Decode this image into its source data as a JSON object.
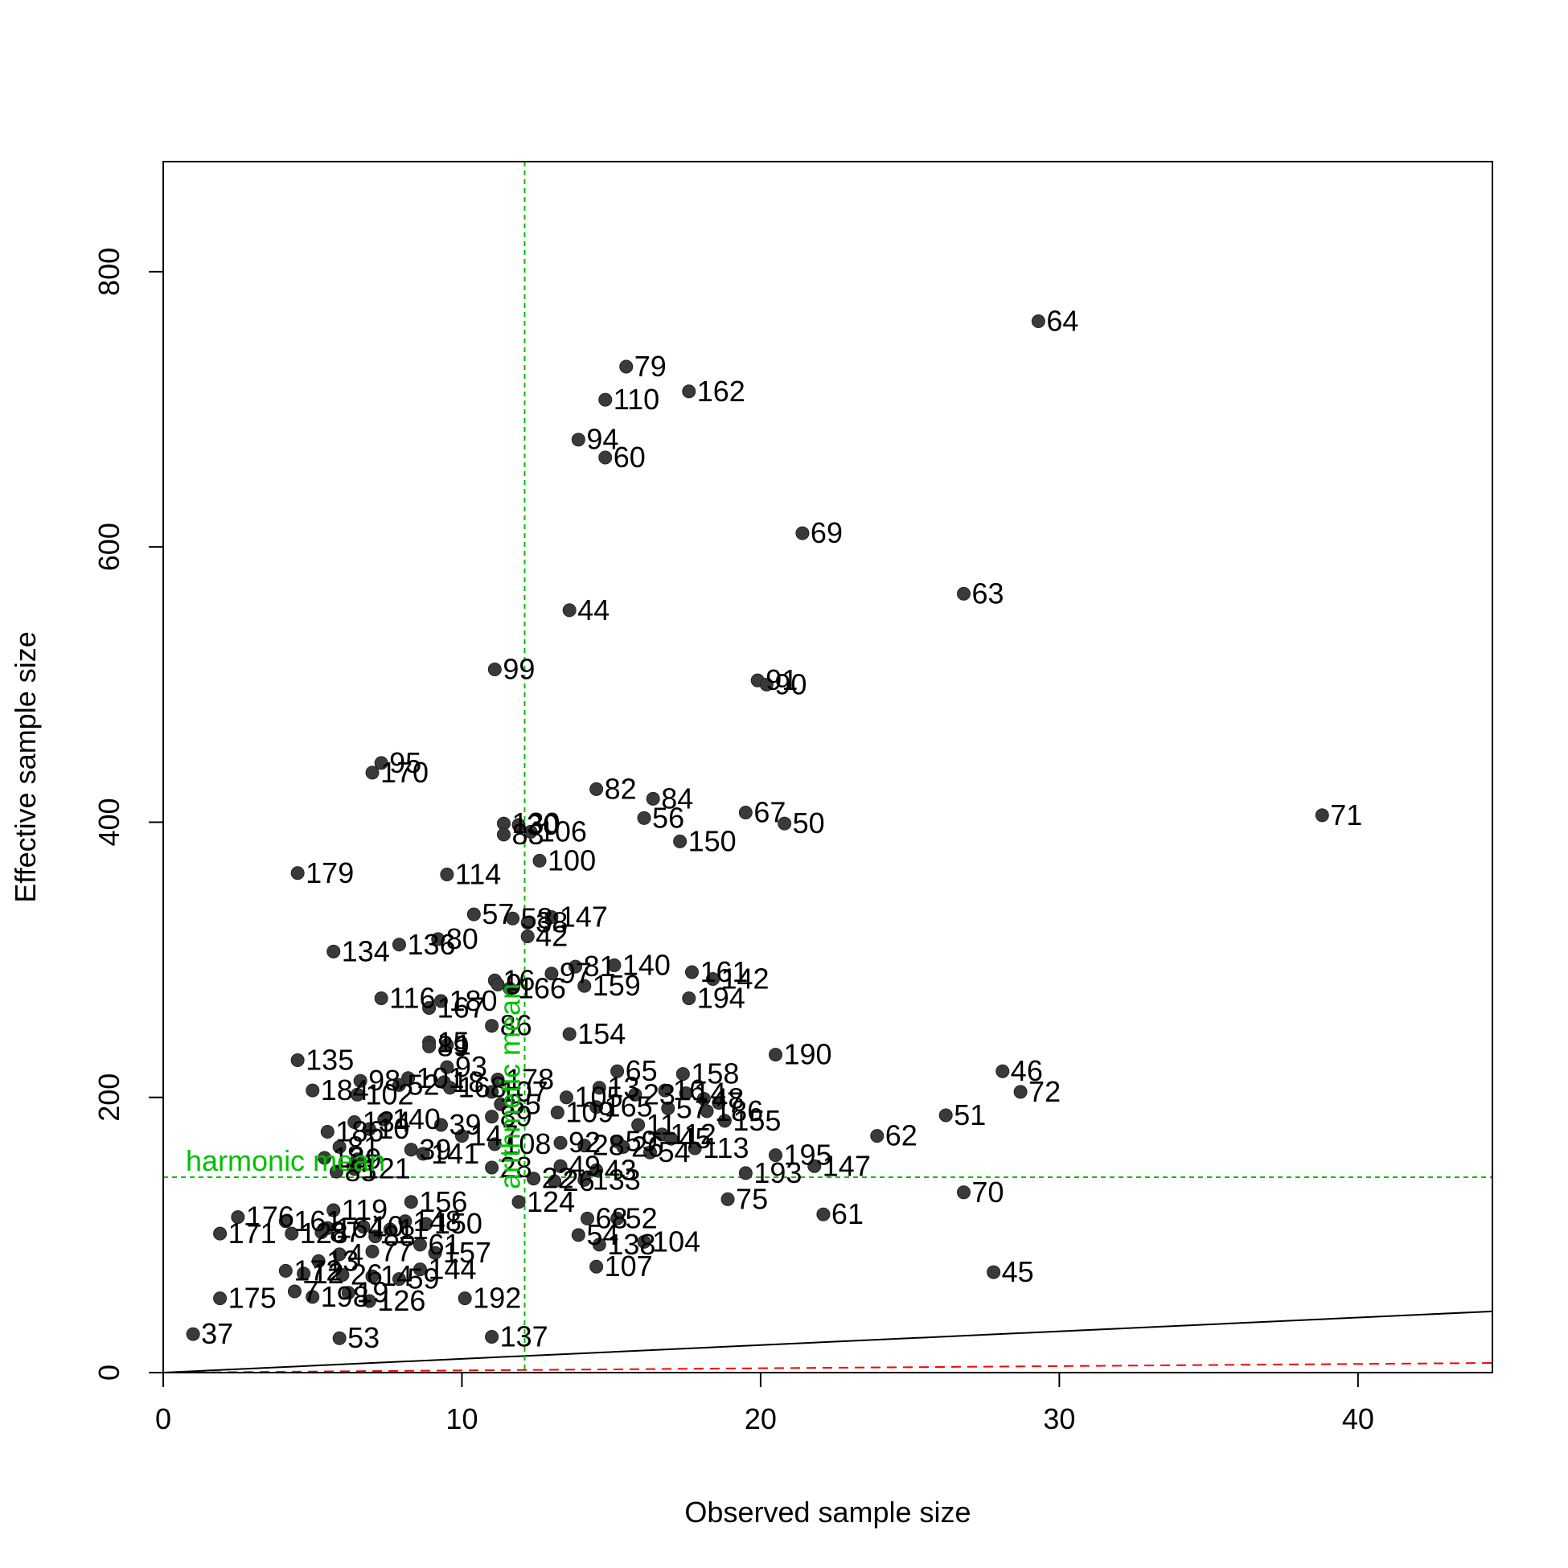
{
  "chart_data": {
    "type": "scatter",
    "title": "",
    "xlabel": "Observed sample size",
    "ylabel": "Effective sample size",
    "xlim": [
      0,
      44.5
    ],
    "ylim": [
      0,
      880
    ],
    "xticks": [
      0,
      10,
      20,
      30,
      40
    ],
    "yticks": [
      0,
      200,
      400,
      600,
      800
    ],
    "grid": false,
    "point_color": "#3a3a3a",
    "reference_lines": {
      "harmonic_mean": {
        "label": "harmonic mean",
        "y": 142,
        "color": "#00c000"
      },
      "arithmetic_mean": {
        "label": "arithmetic mean",
        "x": 12.1,
        "color": "#00c000"
      },
      "black_line": {
        "x": [
          0,
          44.5
        ],
        "y": [
          0,
          44.5
        ],
        "color": "#000000"
      },
      "red_dashed_line": {
        "x": [
          0,
          44.5
        ],
        "y": [
          0,
          7
        ],
        "color": "#ff0000"
      }
    },
    "points": [
      {
        "label": "64",
        "x": 29.3,
        "y": 764
      },
      {
        "label": "79",
        "x": 15.5,
        "y": 731
      },
      {
        "label": "162",
        "x": 17.6,
        "y": 713
      },
      {
        "label": "110",
        "x": 14.8,
        "y": 707
      },
      {
        "label": "94",
        "x": 13.9,
        "y": 678
      },
      {
        "label": "60",
        "x": 14.8,
        "y": 665
      },
      {
        "label": "69",
        "x": 21.4,
        "y": 610
      },
      {
        "label": "63",
        "x": 26.8,
        "y": 566
      },
      {
        "label": "44",
        "x": 13.6,
        "y": 554
      },
      {
        "label": "99",
        "x": 11.1,
        "y": 511
      },
      {
        "label": "91",
        "x": 19.9,
        "y": 503
      },
      {
        "label": "90",
        "x": 20.2,
        "y": 500
      },
      {
        "label": "95",
        "x": 7.3,
        "y": 443
      },
      {
        "label": "170",
        "x": 7.0,
        "y": 436
      },
      {
        "label": "82",
        "x": 14.5,
        "y": 424
      },
      {
        "label": "84",
        "x": 16.4,
        "y": 417
      },
      {
        "label": "71",
        "x": 38.8,
        "y": 405
      },
      {
        "label": "67",
        "x": 19.5,
        "y": 407
      },
      {
        "label": "56",
        "x": 16.1,
        "y": 403
      },
      {
        "label": "50",
        "x": 20.8,
        "y": 399
      },
      {
        "label": "130",
        "x": 11.4,
        "y": 399
      },
      {
        "label": "30",
        "x": 11.9,
        "y": 398
      },
      {
        "label": "83",
        "x": 11.4,
        "y": 391
      },
      {
        "label": "106",
        "x": 12.3,
        "y": 393
      },
      {
        "label": "150",
        "x": 17.3,
        "y": 386
      },
      {
        "label": "100",
        "x": 12.6,
        "y": 372
      },
      {
        "label": "179",
        "x": 4.5,
        "y": 363
      },
      {
        "label": "114",
        "x": 9.5,
        "y": 362
      },
      {
        "label": "57",
        "x": 10.4,
        "y": 333
      },
      {
        "label": "58",
        "x": 11.7,
        "y": 330
      },
      {
        "label": "38",
        "x": 12.2,
        "y": 327
      },
      {
        "label": "147",
        "x": 13.0,
        "y": 331
      },
      {
        "label": "42",
        "x": 12.2,
        "y": 317
      },
      {
        "label": "80",
        "x": 9.2,
        "y": 315
      },
      {
        "label": "136",
        "x": 7.9,
        "y": 311
      },
      {
        "label": "134",
        "x": 5.7,
        "y": 306
      },
      {
        "label": "81",
        "x": 13.8,
        "y": 295
      },
      {
        "label": "140",
        "x": 15.1,
        "y": 296
      },
      {
        "label": "97",
        "x": 13.0,
        "y": 290
      },
      {
        "label": "161",
        "x": 17.7,
        "y": 291
      },
      {
        "label": "142",
        "x": 18.4,
        "y": 286
      },
      {
        "label": "16",
        "x": 11.1,
        "y": 285
      },
      {
        "label": "9",
        "x": 11.2,
        "y": 282
      },
      {
        "label": "159",
        "x": 14.1,
        "y": 281
      },
      {
        "label": "166",
        "x": 11.6,
        "y": 279
      },
      {
        "label": "194",
        "x": 17.6,
        "y": 272
      },
      {
        "label": "116",
        "x": 7.3,
        "y": 272
      },
      {
        "label": "180",
        "x": 9.3,
        "y": 270
      },
      {
        "label": "167",
        "x": 8.9,
        "y": 265
      },
      {
        "label": "86",
        "x": 11.0,
        "y": 252
      },
      {
        "label": "154",
        "x": 13.6,
        "y": 246
      },
      {
        "label": "15",
        "x": 8.9,
        "y": 240
      },
      {
        "label": "89",
        "x": 8.9,
        "y": 237
      },
      {
        "label": "1",
        "x": 9.5,
        "y": 238
      },
      {
        "label": "190",
        "x": 20.5,
        "y": 231
      },
      {
        "label": "135",
        "x": 4.5,
        "y": 227
      },
      {
        "label": "93",
        "x": 9.5,
        "y": 222
      },
      {
        "label": "65",
        "x": 15.2,
        "y": 219
      },
      {
        "label": "46",
        "x": 28.1,
        "y": 219
      },
      {
        "label": "158",
        "x": 17.4,
        "y": 217
      },
      {
        "label": "178",
        "x": 11.2,
        "y": 213
      },
      {
        "label": "98",
        "x": 6.6,
        "y": 212
      },
      {
        "label": "101",
        "x": 8.2,
        "y": 214
      },
      {
        "label": "18",
        "x": 9.4,
        "y": 211
      },
      {
        "label": "13",
        "x": 14.6,
        "y": 207
      },
      {
        "label": "184",
        "x": 5.0,
        "y": 205
      },
      {
        "label": "102",
        "x": 6.5,
        "y": 202
      },
      {
        "label": "72",
        "x": 28.7,
        "y": 204
      },
      {
        "label": "16",
        "x": 16.8,
        "y": 205
      },
      {
        "label": "52",
        "x": 7.9,
        "y": 209
      },
      {
        "label": "168",
        "x": 9.6,
        "y": 207
      },
      {
        "label": "107",
        "x": 11.0,
        "y": 204
      },
      {
        "label": "23",
        "x": 15.8,
        "y": 202
      },
      {
        "label": "14",
        "x": 17.5,
        "y": 203
      },
      {
        "label": "48",
        "x": 18.1,
        "y": 199
      },
      {
        "label": "105",
        "x": 13.5,
        "y": 200
      },
      {
        "label": "7",
        "x": 18.6,
        "y": 196
      },
      {
        "label": "55",
        "x": 11.3,
        "y": 195
      },
      {
        "label": "165",
        "x": 14.5,
        "y": 193
      },
      {
        "label": "57",
        "x": 16.9,
        "y": 192
      },
      {
        "label": "186",
        "x": 18.2,
        "y": 190
      },
      {
        "label": "51",
        "x": 26.2,
        "y": 187
      },
      {
        "label": "89",
        "x": 11.0,
        "y": 186
      },
      {
        "label": "109",
        "x": 13.2,
        "y": 189
      },
      {
        "label": "155",
        "x": 18.8,
        "y": 183
      },
      {
        "label": "134",
        "x": 6.4,
        "y": 182
      },
      {
        "label": "140",
        "x": 7.4,
        "y": 184
      },
      {
        "label": "39",
        "x": 9.3,
        "y": 180
      },
      {
        "label": "11",
        "x": 15.9,
        "y": 180
      },
      {
        "label": "186",
        "x": 5.5,
        "y": 175
      },
      {
        "label": "10",
        "x": 6.9,
        "y": 177
      },
      {
        "label": "147",
        "x": 10.0,
        "y": 172
      },
      {
        "label": "112",
        "x": 16.7,
        "y": 173
      },
      {
        "label": "62",
        "x": 23.9,
        "y": 172
      },
      {
        "label": "45",
        "x": 17.0,
        "y": 170
      },
      {
        "label": "59",
        "x": 15.2,
        "y": 168
      },
      {
        "label": "108",
        "x": 11.1,
        "y": 166
      },
      {
        "label": "92",
        "x": 13.3,
        "y": 167
      },
      {
        "label": "28",
        "x": 14.1,
        "y": 165
      },
      {
        "label": "26",
        "x": 15.4,
        "y": 164
      },
      {
        "label": "113",
        "x": 17.8,
        "y": 163
      },
      {
        "label": "39",
        "x": 8.3,
        "y": 162
      },
      {
        "label": "81",
        "x": 5.9,
        "y": 164
      },
      {
        "label": "141",
        "x": 8.7,
        "y": 159
      },
      {
        "label": "54",
        "x": 16.3,
        "y": 160
      },
      {
        "label": "195",
        "x": 20.5,
        "y": 158
      },
      {
        "label": "12",
        "x": 5.4,
        "y": 156
      },
      {
        "label": "9",
        "x": 6.5,
        "y": 155
      },
      {
        "label": "147",
        "x": 21.8,
        "y": 150
      },
      {
        "label": "28",
        "x": 11.0,
        "y": 149
      },
      {
        "label": "49",
        "x": 13.3,
        "y": 150
      },
      {
        "label": "43",
        "x": 14.5,
        "y": 147
      },
      {
        "label": "85",
        "x": 5.8,
        "y": 146
      },
      {
        "label": "121",
        "x": 6.4,
        "y": 148
      },
      {
        "label": "193",
        "x": 19.5,
        "y": 145
      },
      {
        "label": "22",
        "x": 12.4,
        "y": 141
      },
      {
        "label": "26",
        "x": 13.1,
        "y": 139
      },
      {
        "label": "133",
        "x": 14.1,
        "y": 140
      },
      {
        "label": "70",
        "x": 26.8,
        "y": 131
      },
      {
        "label": "75",
        "x": 18.9,
        "y": 126
      },
      {
        "label": "124",
        "x": 11.9,
        "y": 124
      },
      {
        "label": "156",
        "x": 8.3,
        "y": 124
      },
      {
        "label": "119",
        "x": 5.7,
        "y": 118
      },
      {
        "label": "61",
        "x": 22.1,
        "y": 115
      },
      {
        "label": "68",
        "x": 14.2,
        "y": 112
      },
      {
        "label": "52",
        "x": 15.2,
        "y": 112
      },
      {
        "label": "176",
        "x": 2.5,
        "y": 113
      },
      {
        "label": "161",
        "x": 4.1,
        "y": 110
      },
      {
        "label": "148",
        "x": 8.1,
        "y": 110
      },
      {
        "label": "150",
        "x": 8.8,
        "y": 108
      },
      {
        "label": "164",
        "x": 5.5,
        "y": 105
      },
      {
        "label": "10",
        "x": 6.7,
        "y": 106
      },
      {
        "label": "11",
        "x": 7.6,
        "y": 104
      },
      {
        "label": "171",
        "x": 1.9,
        "y": 101
      },
      {
        "label": "128",
        "x": 4.3,
        "y": 101
      },
      {
        "label": "87",
        "x": 5.3,
        "y": 102
      },
      {
        "label": "88",
        "x": 7.1,
        "y": 99
      },
      {
        "label": "54",
        "x": 13.9,
        "y": 100
      },
      {
        "label": "104",
        "x": 16.1,
        "y": 95
      },
      {
        "label": "138",
        "x": 14.6,
        "y": 93
      },
      {
        "label": "61",
        "x": 8.6,
        "y": 93
      },
      {
        "label": "77",
        "x": 7.0,
        "y": 88
      },
      {
        "label": "157",
        "x": 9.1,
        "y": 87
      },
      {
        "label": "4",
        "x": 5.9,
        "y": 86
      },
      {
        "label": "13",
        "x": 5.2,
        "y": 81
      },
      {
        "label": "107",
        "x": 14.5,
        "y": 77
      },
      {
        "label": "45",
        "x": 27.8,
        "y": 73
      },
      {
        "label": "144",
        "x": 8.6,
        "y": 75
      },
      {
        "label": "172",
        "x": 4.1,
        "y": 74
      },
      {
        "label": "12",
        "x": 4.7,
        "y": 72
      },
      {
        "label": "26",
        "x": 6.0,
        "y": 71
      },
      {
        "label": "14",
        "x": 7.0,
        "y": 70
      },
      {
        "label": "59",
        "x": 7.9,
        "y": 68
      },
      {
        "label": "7",
        "x": 4.4,
        "y": 59
      },
      {
        "label": "198",
        "x": 5.0,
        "y": 55
      },
      {
        "label": "19",
        "x": 6.2,
        "y": 58
      },
      {
        "label": "175",
        "x": 1.9,
        "y": 54
      },
      {
        "label": "192",
        "x": 10.1,
        "y": 54
      },
      {
        "label": "126",
        "x": 6.9,
        "y": 52
      },
      {
        "label": "37",
        "x": 1.0,
        "y": 28
      },
      {
        "label": "53",
        "x": 5.9,
        "y": 25
      },
      {
        "label": "137",
        "x": 11.0,
        "y": 26
      }
    ]
  }
}
